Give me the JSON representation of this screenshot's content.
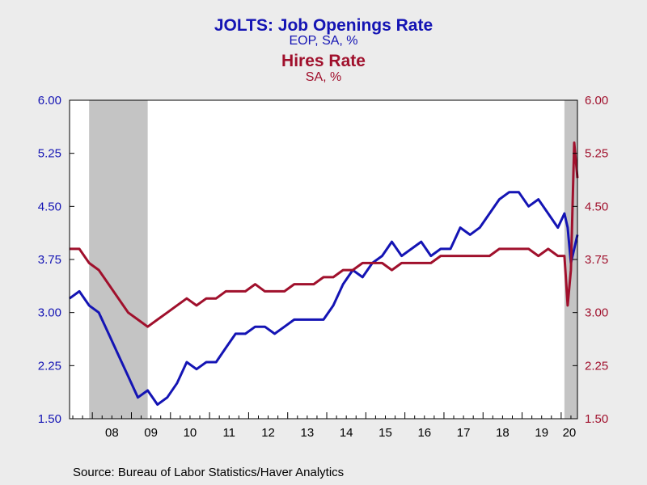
{
  "titles": {
    "title1": "JOLTS: Job Openings Rate",
    "subtitle1": "EOP, SA, %",
    "title2": "Hires Rate",
    "subtitle2": "SA, %"
  },
  "source": "Source:  Bureau of Labor Statistics/Haver Analytics",
  "colors": {
    "job_openings": "#1414b4",
    "hires": "#a0102c",
    "recession": "#c4c4c4",
    "plot_bg": "#ffffff",
    "page_bg": "#ececec"
  },
  "chart_data": {
    "type": "line",
    "title": "JOLTS: Job Openings Rate",
    "subtitle": "EOP, SA, %",
    "title2": "Hires Rate",
    "subtitle2": "SA, %",
    "ylim": [
      1.5,
      6.0
    ],
    "y2lim": [
      1.5,
      6.0
    ],
    "xlim": [
      "2007-06",
      "2020-06"
    ],
    "y_ticks": [
      "1.50",
      "2.25",
      "3.00",
      "3.75",
      "4.50",
      "5.25",
      "6.00"
    ],
    "x_tick_labels": [
      "08",
      "09",
      "10",
      "11",
      "12",
      "13",
      "14",
      "15",
      "16",
      "17",
      "18",
      "19",
      "20"
    ],
    "grid": false,
    "recession_shading": [
      [
        "2007-12",
        "2009-06"
      ],
      [
        "2020-02",
        "2020-06"
      ]
    ],
    "series": [
      {
        "name": "JOLTS: Job Openings Rate",
        "axis": "left",
        "x": [
          "2007-06",
          "2007-09",
          "2007-12",
          "2008-03",
          "2008-06",
          "2008-09",
          "2008-12",
          "2009-03",
          "2009-06",
          "2009-09",
          "2009-12",
          "2010-03",
          "2010-06",
          "2010-09",
          "2010-12",
          "2011-03",
          "2011-06",
          "2011-09",
          "2011-12",
          "2012-03",
          "2012-06",
          "2012-09",
          "2012-12",
          "2013-03",
          "2013-06",
          "2013-09",
          "2013-12",
          "2014-03",
          "2014-06",
          "2014-09",
          "2014-12",
          "2015-03",
          "2015-06",
          "2015-09",
          "2015-12",
          "2016-03",
          "2016-06",
          "2016-09",
          "2016-12",
          "2017-03",
          "2017-06",
          "2017-09",
          "2017-12",
          "2018-03",
          "2018-06",
          "2018-09",
          "2018-12",
          "2019-03",
          "2019-06",
          "2019-09",
          "2019-12",
          "2020-02",
          "2020-03",
          "2020-04",
          "2020-05",
          "2020-06"
        ],
        "values": [
          3.2,
          3.3,
          3.1,
          3.0,
          2.7,
          2.4,
          2.1,
          1.8,
          1.9,
          1.7,
          1.8,
          2.0,
          2.3,
          2.2,
          2.3,
          2.3,
          2.5,
          2.7,
          2.7,
          2.8,
          2.8,
          2.7,
          2.8,
          2.9,
          2.9,
          2.9,
          2.9,
          3.1,
          3.4,
          3.6,
          3.5,
          3.7,
          3.8,
          4.0,
          3.8,
          3.9,
          4.0,
          3.8,
          3.9,
          3.9,
          4.2,
          4.1,
          4.2,
          4.4,
          4.6,
          4.7,
          4.7,
          4.5,
          4.6,
          4.4,
          4.2,
          4.4,
          4.2,
          3.7,
          3.9,
          4.1
        ]
      },
      {
        "name": "Hires Rate",
        "axis": "right",
        "x": [
          "2007-06",
          "2007-09",
          "2007-12",
          "2008-03",
          "2008-06",
          "2008-09",
          "2008-12",
          "2009-03",
          "2009-06",
          "2009-09",
          "2009-12",
          "2010-03",
          "2010-06",
          "2010-09",
          "2010-12",
          "2011-03",
          "2011-06",
          "2011-09",
          "2011-12",
          "2012-03",
          "2012-06",
          "2012-09",
          "2012-12",
          "2013-03",
          "2013-06",
          "2013-09",
          "2013-12",
          "2014-03",
          "2014-06",
          "2014-09",
          "2014-12",
          "2015-03",
          "2015-06",
          "2015-09",
          "2015-12",
          "2016-03",
          "2016-06",
          "2016-09",
          "2016-12",
          "2017-03",
          "2017-06",
          "2017-09",
          "2017-12",
          "2018-03",
          "2018-06",
          "2018-09",
          "2018-12",
          "2019-03",
          "2019-06",
          "2019-09",
          "2019-12",
          "2020-02",
          "2020-03",
          "2020-04",
          "2020-05",
          "2020-06"
        ],
        "values": [
          3.9,
          3.9,
          3.7,
          3.6,
          3.4,
          3.2,
          3.0,
          2.9,
          2.8,
          2.9,
          3.0,
          3.1,
          3.2,
          3.1,
          3.2,
          3.2,
          3.3,
          3.3,
          3.3,
          3.4,
          3.3,
          3.3,
          3.3,
          3.4,
          3.4,
          3.4,
          3.5,
          3.5,
          3.6,
          3.6,
          3.7,
          3.7,
          3.7,
          3.6,
          3.7,
          3.7,
          3.7,
          3.7,
          3.8,
          3.8,
          3.8,
          3.8,
          3.8,
          3.8,
          3.9,
          3.9,
          3.9,
          3.9,
          3.8,
          3.9,
          3.8,
          3.8,
          3.1,
          3.6,
          5.4,
          4.9
        ]
      }
    ]
  }
}
